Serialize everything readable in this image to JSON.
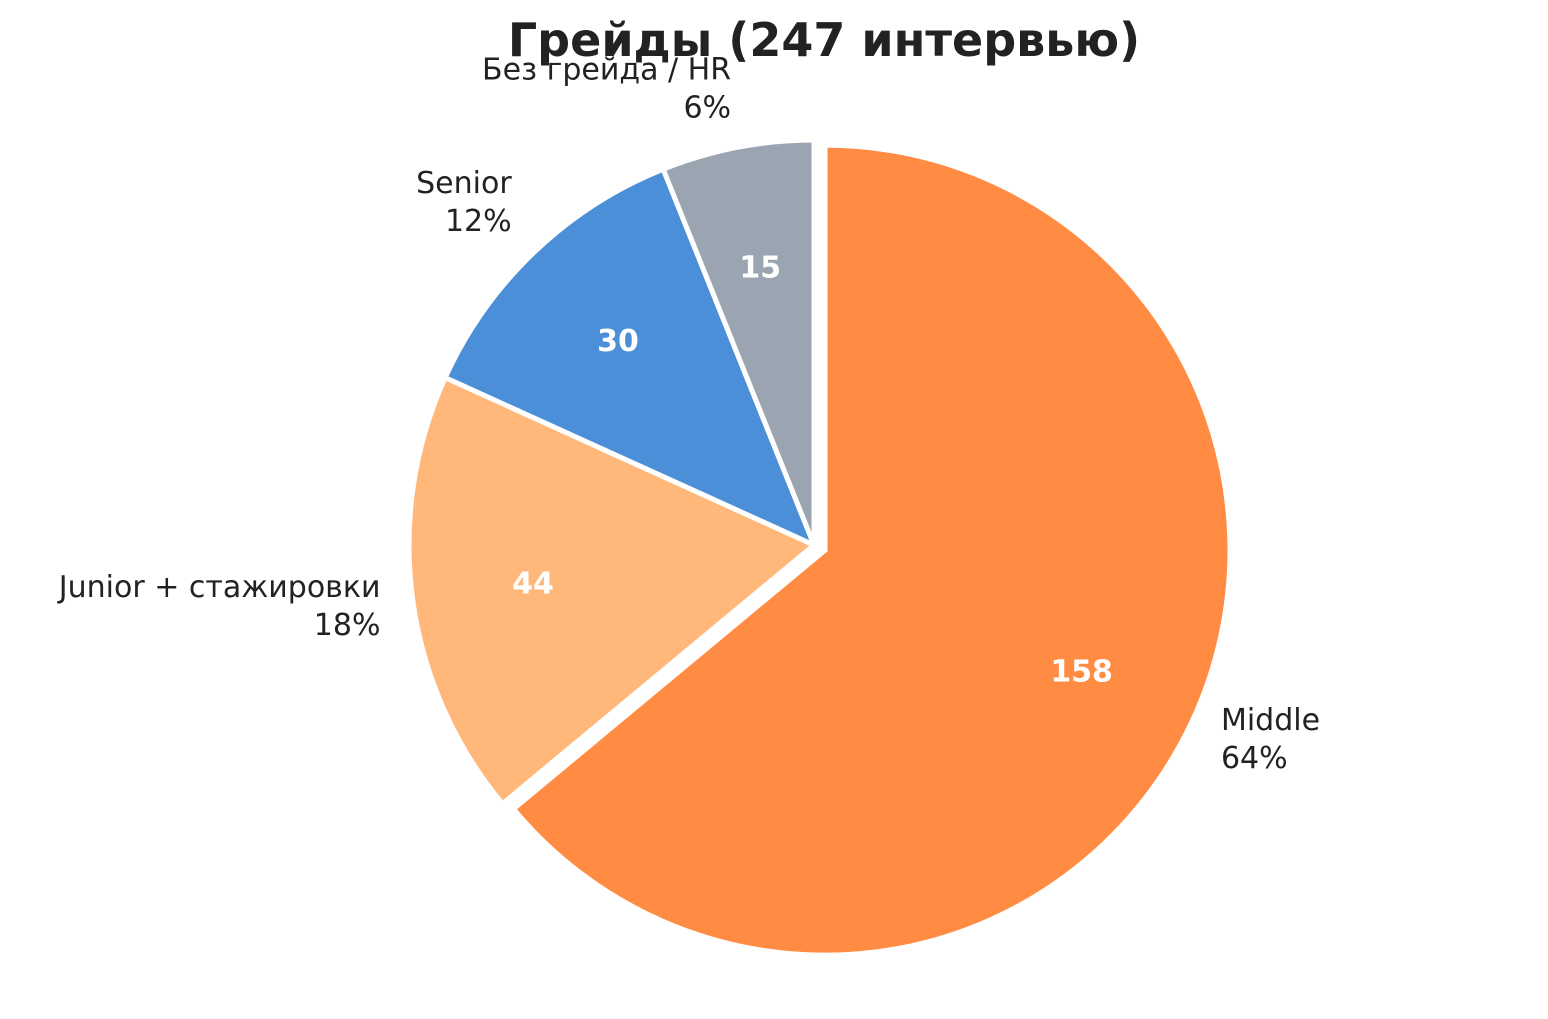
{
  "chart_data": {
    "type": "pie",
    "title": "Грейды (247 интервью)",
    "slices": [
      {
        "label": "Middle",
        "value": 158,
        "percent_label": "64%",
        "color": "#FF8C42",
        "explode": 0.03
      },
      {
        "label": "Junior + стажировки",
        "value": 44,
        "percent_label": "18%",
        "color": "#FFB87A",
        "explode": 0
      },
      {
        "label": "Senior",
        "value": 30,
        "percent_label": "12%",
        "color": "#4A8FD8",
        "explode": 0
      },
      {
        "label": "Без грейда / HR",
        "value": 15,
        "percent_label": "6%",
        "color": "#9AA5B1",
        "explode": 0
      }
    ],
    "start_angle": "12 o'clock",
    "direction": "clockwise",
    "legend": "none"
  }
}
